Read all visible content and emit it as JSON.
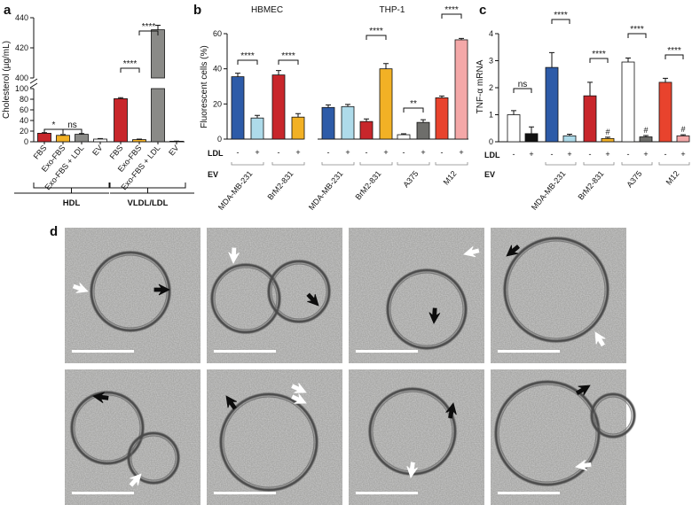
{
  "panel_labels": {
    "a": "a",
    "b": "b",
    "c": "c",
    "d": "d"
  },
  "chart_data": [
    {
      "id": "a",
      "type": "bar",
      "ylabel": "Cholesterol (µg/mL)",
      "y_axis_break": true,
      "lower_ylim": [
        0,
        100
      ],
      "lower_yticks": [
        "0",
        "20",
        "40",
        "60",
        "80",
        "100"
      ],
      "upper_ylim": [
        400,
        440
      ],
      "upper_yticks": [
        "400",
        "420",
        "440"
      ],
      "categories": [
        "FBS",
        "Exo-FBS",
        "Exo-FBS + LDL",
        "EV",
        "FBS",
        "Exo-FBS",
        "Exo-FBS + LDL",
        "EV"
      ],
      "values": [
        16,
        12,
        14,
        5,
        81,
        4,
        432,
        1
      ],
      "errors": [
        1,
        1.5,
        1.5,
        1,
        2,
        1,
        3,
        0.3
      ],
      "colors": [
        "#c8262b",
        "#f2b125",
        "#8a8a87",
        "#ffffff",
        "#c8262b",
        "#f2b125",
        "#8a8a87",
        "#ffffff"
      ],
      "groups": [
        {
          "label": "HDL",
          "from": 0,
          "to": 3
        },
        {
          "label": "VLDL/LDL",
          "from": 4,
          "to": 7
        }
      ],
      "significance": [
        {
          "from": 0,
          "to": 1,
          "label": "*"
        },
        {
          "from": 1,
          "to": 2,
          "label": "ns"
        },
        {
          "from": 4,
          "to": 5,
          "label": "****"
        },
        {
          "from": 5,
          "to": 6,
          "label": "****"
        }
      ]
    },
    {
      "id": "b",
      "type": "bar",
      "ylabel": "Fluorescent cells (%)",
      "ylim": [
        0,
        60
      ],
      "yticks": [
        "0",
        "20",
        "40",
        "60"
      ],
      "subtitles": [
        "HBMEC",
        "THP-1"
      ],
      "row_labels": {
        "ldl": "LDL",
        "ev": "EV"
      },
      "ldl_signs": [
        "-",
        "+"
      ],
      "pairs": [
        {
          "cell": "HBMEC",
          "ev": "MDA-MB-231",
          "values": [
            35.5,
            12
          ],
          "errors": [
            2,
            1.5
          ],
          "colors": [
            "#2d5ba8",
            "#aedbea"
          ],
          "sig": "****"
        },
        {
          "cell": "HBMEC",
          "ev": "BrM2-831",
          "values": [
            36.5,
            12.5
          ],
          "errors": [
            2.5,
            2
          ],
          "colors": [
            "#c8262b",
            "#f2b125"
          ],
          "sig": "****"
        },
        {
          "cell": "THP-1",
          "ev": "MDA-MB-231",
          "values": [
            18,
            18.5
          ],
          "errors": [
            1.5,
            1.2
          ],
          "colors": [
            "#2d5ba8",
            "#aedbea"
          ],
          "sig": ""
        },
        {
          "cell": "THP-1",
          "ev": "BrM2-831",
          "values": [
            10,
            40
          ],
          "errors": [
            1.5,
            3
          ],
          "colors": [
            "#c8262b",
            "#f2b125"
          ],
          "sig": "****"
        },
        {
          "cell": "THP-1",
          "ev": "A375",
          "values": [
            2.5,
            9.5
          ],
          "errors": [
            0.5,
            1.5
          ],
          "colors": [
            "#ffffff",
            "#6e6e6b"
          ],
          "sig": "**"
        },
        {
          "cell": "THP-1",
          "ev": "M12",
          "values": [
            23.5,
            56.5
          ],
          "errors": [
            1,
            0.8
          ],
          "colors": [
            "#e8432d",
            "#f4a8a8"
          ],
          "sig": "****"
        }
      ]
    },
    {
      "id": "c",
      "type": "bar",
      "ylabel": "TNF-α mRNA",
      "ylim": [
        0,
        4
      ],
      "yticks": [
        "0",
        "1",
        "2",
        "3",
        "4"
      ],
      "row_labels": {
        "ldl": "LDL",
        "ev": "EV"
      },
      "ldl_signs": [
        "-",
        "+"
      ],
      "pairs": [
        {
          "ev": "",
          "values": [
            1.0,
            0.3
          ],
          "errors": [
            0.15,
            0.25
          ],
          "colors": [
            "#ffffff",
            "#111111"
          ],
          "sig": "ns",
          "marker": ""
        },
        {
          "ev": "MDA-MB-231",
          "values": [
            2.75,
            0.22
          ],
          "errors": [
            0.55,
            0.06
          ],
          "colors": [
            "#2d5ba8",
            "#aedbea"
          ],
          "sig": "****",
          "marker": ""
        },
        {
          "ev": "BrM2-831",
          "values": [
            1.7,
            0.12
          ],
          "errors": [
            0.5,
            0.05
          ],
          "colors": [
            "#c8262b",
            "#f2b125"
          ],
          "sig": "****",
          "marker": "#"
        },
        {
          "ev": "A375",
          "values": [
            2.95,
            0.18
          ],
          "errors": [
            0.15,
            0.05
          ],
          "colors": [
            "#ffffff",
            "#6e6e6b"
          ],
          "sig": "****",
          "marker": "#"
        },
        {
          "ev": "M12",
          "values": [
            2.2,
            0.22
          ],
          "errors": [
            0.15,
            0.04
          ],
          "colors": [
            "#e8432d",
            "#f4a8a8"
          ],
          "sig": "****",
          "marker": "#"
        }
      ]
    }
  ],
  "micrographs": {
    "count": 8,
    "tiles": [
      {
        "row": 0,
        "col": 0,
        "black_arrows": 1,
        "white_arrows": 1
      },
      {
        "row": 0,
        "col": 1,
        "black_arrows": 1,
        "white_arrows": 1
      },
      {
        "row": 0,
        "col": 2,
        "black_arrows": 1,
        "white_arrows": 1
      },
      {
        "row": 0,
        "col": 3,
        "black_arrows": 1,
        "white_arrows": 1
      },
      {
        "row": 1,
        "col": 0,
        "black_arrows": 1,
        "white_arrows": 1
      },
      {
        "row": 1,
        "col": 1,
        "black_arrows": 1,
        "white_arrows": 2
      },
      {
        "row": 1,
        "col": 2,
        "black_arrows": 1,
        "white_arrows": 1
      },
      {
        "row": 1,
        "col": 3,
        "black_arrows": 1,
        "white_arrows": 1
      }
    ]
  }
}
